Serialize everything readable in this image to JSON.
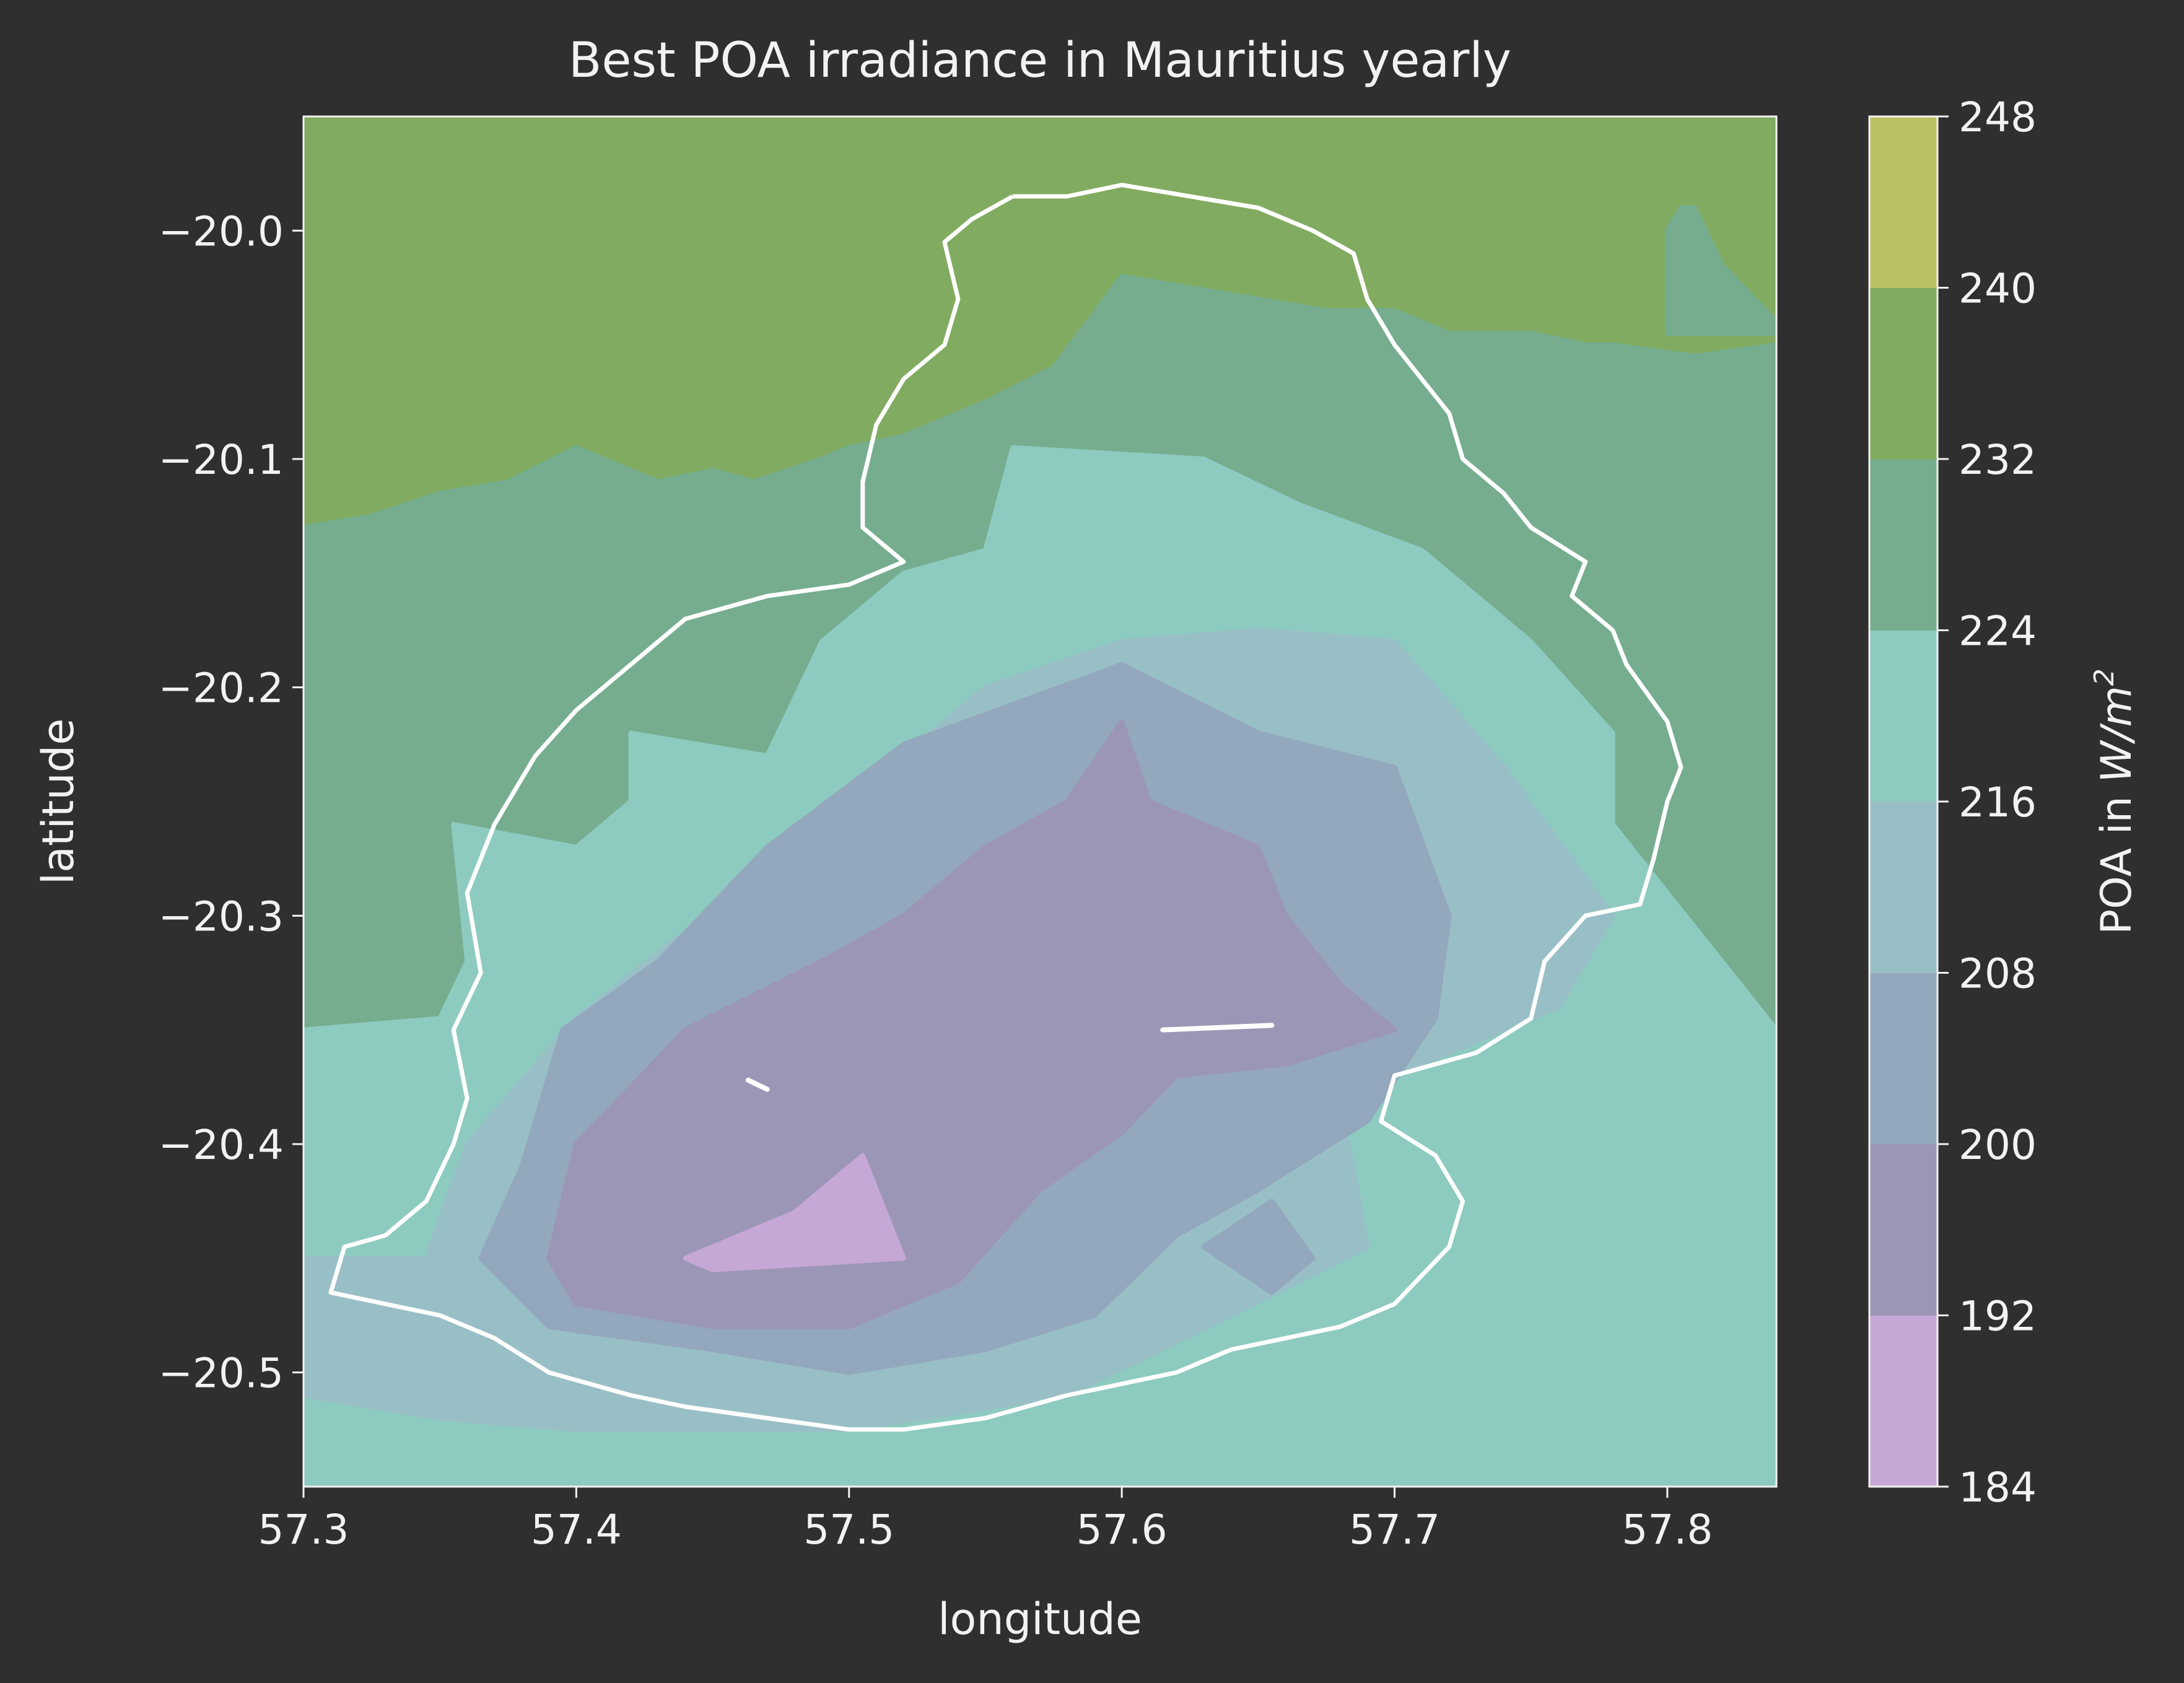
{
  "chart_data": {
    "type": "heatmap",
    "subtype": "filled-contour map with coastline overlay",
    "title": "Best POA irradiance in Mauritius yearly",
    "xlabel": "longitude",
    "ylabel": "latitude",
    "xlim": [
      57.3,
      57.84
    ],
    "ylim": [
      -20.55,
      -19.95
    ],
    "x_ticks": [
      "57.3",
      "57.4",
      "57.5",
      "57.6",
      "57.7",
      "57.8"
    ],
    "x_tick_values": [
      57.3,
      57.4,
      57.5,
      57.6,
      57.7,
      57.8
    ],
    "y_ticks": [
      "−20.0",
      "−20.1",
      "−20.2",
      "−20.3",
      "−20.4",
      "−20.5"
    ],
    "y_tick_values": [
      -20.0,
      -20.1,
      -20.2,
      -20.3,
      -20.4,
      -20.5
    ],
    "colorbar": {
      "label": "POA in W/m²",
      "label_main": "POA in ",
      "label_unit": "W/m",
      "label_sup": "2",
      "levels": [
        184,
        192,
        200,
        208,
        216,
        224,
        232,
        240,
        248
      ],
      "tick_labels": [
        "184",
        "192",
        "200",
        "208",
        "216",
        "224",
        "232",
        "240",
        "248"
      ],
      "colors": [
        "#c5a8d6",
        "#9c96b6",
        "#93a7bd",
        "#99bfc6",
        "#8dcac0",
        "#75ad8e",
        "#81ab60",
        "#bcc064"
      ]
    },
    "regions": [
      {
        "level_index": 6,
        "range": [
          232,
          240
        ],
        "points": [
          [
            57.3,
            -19.95
          ],
          [
            57.84,
            -19.95
          ],
          [
            57.84,
            -20.55
          ],
          [
            57.3,
            -20.55
          ]
        ]
      },
      {
        "level_index": 5,
        "range": [
          224,
          232
        ],
        "points": [
          [
            57.3,
            -20.13
          ],
          [
            57.325,
            -20.125
          ],
          [
            57.35,
            -20.115
          ],
          [
            57.375,
            -20.11
          ],
          [
            57.4,
            -20.095
          ],
          [
            57.41,
            -20.1
          ],
          [
            57.43,
            -20.11
          ],
          [
            57.45,
            -20.105
          ],
          [
            57.465,
            -20.11
          ],
          [
            57.49,
            -20.1
          ],
          [
            57.5,
            -20.095
          ],
          [
            57.52,
            -20.09
          ],
          [
            57.55,
            -20.075
          ],
          [
            57.575,
            -20.06
          ],
          [
            57.6,
            -20.02
          ],
          [
            57.625,
            -20.025
          ],
          [
            57.65,
            -20.03
          ],
          [
            57.675,
            -20.035
          ],
          [
            57.7,
            -20.035
          ],
          [
            57.72,
            -20.045
          ],
          [
            57.75,
            -20.045
          ],
          [
            57.77,
            -20.05
          ],
          [
            57.78,
            -20.05
          ],
          [
            57.81,
            -20.055
          ],
          [
            57.84,
            -20.05
          ],
          [
            57.84,
            -20.55
          ],
          [
            57.3,
            -20.55
          ]
        ]
      },
      {
        "level_index": 5,
        "range": [
          224,
          232
        ],
        "points": [
          [
            57.8,
            -20.0
          ],
          [
            57.805,
            -19.99
          ],
          [
            57.81,
            -19.99
          ],
          [
            57.82,
            -20.015
          ],
          [
            57.84,
            -20.04
          ],
          [
            57.84,
            -20.045
          ],
          [
            57.8,
            -20.045
          ]
        ]
      },
      {
        "level_index": 4,
        "range": [
          216,
          224
        ],
        "points": [
          [
            57.3,
            -20.35
          ],
          [
            57.35,
            -20.345
          ],
          [
            57.36,
            -20.32
          ],
          [
            57.355,
            -20.26
          ],
          [
            57.4,
            -20.27
          ],
          [
            57.42,
            -20.25
          ],
          [
            57.42,
            -20.22
          ],
          [
            57.47,
            -20.23
          ],
          [
            57.49,
            -20.18
          ],
          [
            57.52,
            -20.15
          ],
          [
            57.55,
            -20.14
          ],
          [
            57.56,
            -20.095
          ],
          [
            57.63,
            -20.1
          ],
          [
            57.665,
            -20.12
          ],
          [
            57.71,
            -20.14
          ],
          [
            57.75,
            -20.18
          ],
          [
            57.78,
            -20.22
          ],
          [
            57.78,
            -20.26
          ],
          [
            57.84,
            -20.35
          ],
          [
            57.84,
            -20.55
          ],
          [
            57.3,
            -20.55
          ]
        ]
      },
      {
        "level_index": 3,
        "range": [
          208,
          216
        ],
        "points": [
          [
            57.3,
            -20.45
          ],
          [
            57.345,
            -20.45
          ],
          [
            57.36,
            -20.4
          ],
          [
            57.4,
            -20.345
          ],
          [
            57.5,
            -20.25
          ],
          [
            57.55,
            -20.2
          ],
          [
            57.6,
            -20.18
          ],
          [
            57.65,
            -20.175
          ],
          [
            57.7,
            -20.18
          ],
          [
            57.74,
            -20.235
          ],
          [
            57.78,
            -20.3
          ],
          [
            57.76,
            -20.34
          ],
          [
            57.72,
            -20.36
          ],
          [
            57.68,
            -20.38
          ],
          [
            57.69,
            -20.445
          ],
          [
            57.64,
            -20.475
          ],
          [
            57.58,
            -20.51
          ],
          [
            57.5,
            -20.525
          ],
          [
            57.4,
            -20.525
          ],
          [
            57.35,
            -20.52
          ],
          [
            57.3,
            -20.51
          ]
        ]
      },
      {
        "level_index": 2,
        "range": [
          200,
          208
        ],
        "points": [
          [
            57.365,
            -20.45
          ],
          [
            57.38,
            -20.41
          ],
          [
            57.395,
            -20.35
          ],
          [
            57.43,
            -20.32
          ],
          [
            57.47,
            -20.27
          ],
          [
            57.52,
            -20.225
          ],
          [
            57.6,
            -20.19
          ],
          [
            57.65,
            -20.22
          ],
          [
            57.7,
            -20.235
          ],
          [
            57.72,
            -20.3
          ],
          [
            57.715,
            -20.345
          ],
          [
            57.69,
            -20.39
          ],
          [
            57.65,
            -20.42
          ],
          [
            57.62,
            -20.44
          ],
          [
            57.59,
            -20.475
          ],
          [
            57.55,
            -20.49
          ],
          [
            57.5,
            -20.5
          ],
          [
            57.45,
            -20.49
          ],
          [
            57.39,
            -20.48
          ]
        ]
      },
      {
        "level_index": 1,
        "range": [
          192,
          200
        ],
        "points": [
          [
            57.39,
            -20.45
          ],
          [
            57.4,
            -20.4
          ],
          [
            57.44,
            -20.35
          ],
          [
            57.49,
            -20.32
          ],
          [
            57.52,
            -20.3
          ],
          [
            57.55,
            -20.27
          ],
          [
            57.58,
            -20.25
          ],
          [
            57.6,
            -20.215
          ],
          [
            57.61,
            -20.25
          ],
          [
            57.65,
            -20.27
          ],
          [
            57.66,
            -20.3
          ],
          [
            57.68,
            -20.33
          ],
          [
            57.7,
            -20.35
          ],
          [
            57.66,
            -20.365
          ],
          [
            57.62,
            -20.37
          ],
          [
            57.6,
            -20.395
          ],
          [
            57.57,
            -20.42
          ],
          [
            57.54,
            -20.46
          ],
          [
            57.5,
            -20.48
          ],
          [
            57.45,
            -20.48
          ],
          [
            57.4,
            -20.47
          ]
        ]
      },
      {
        "level_index": 2,
        "range": [
          200,
          208
        ],
        "points": [
          [
            57.63,
            -20.445
          ],
          [
            57.655,
            -20.425
          ],
          [
            57.67,
            -20.45
          ],
          [
            57.655,
            -20.465
          ]
        ]
      },
      {
        "level_index": 0,
        "range": [
          184,
          192
        ],
        "points": [
          [
            57.44,
            -20.45
          ],
          [
            57.48,
            -20.43
          ],
          [
            57.505,
            -20.405
          ],
          [
            57.52,
            -20.45
          ],
          [
            57.45,
            -20.455
          ]
        ]
      }
    ],
    "coastline": [
      [
        57.56,
        -19.985
      ],
      [
        57.58,
        -19.985
      ],
      [
        57.6,
        -19.98
      ],
      [
        57.625,
        -19.985
      ],
      [
        57.65,
        -19.99
      ],
      [
        57.67,
        -20.0
      ],
      [
        57.685,
        -20.01
      ],
      [
        57.69,
        -20.03
      ],
      [
        57.7,
        -20.05
      ],
      [
        57.71,
        -20.065
      ],
      [
        57.72,
        -20.08
      ],
      [
        57.725,
        -20.1
      ],
      [
        57.74,
        -20.115
      ],
      [
        57.75,
        -20.13
      ],
      [
        57.77,
        -20.145
      ],
      [
        57.765,
        -20.16
      ],
      [
        57.78,
        -20.175
      ],
      [
        57.785,
        -20.19
      ],
      [
        57.8,
        -20.215
      ],
      [
        57.805,
        -20.235
      ],
      [
        57.8,
        -20.25
      ],
      [
        57.795,
        -20.275
      ],
      [
        57.79,
        -20.295
      ],
      [
        57.77,
        -20.3
      ],
      [
        57.755,
        -20.32
      ],
      [
        57.75,
        -20.345
      ],
      [
        57.73,
        -20.36
      ],
      [
        57.7,
        -20.37
      ],
      [
        57.695,
        -20.39
      ],
      [
        57.715,
        -20.405
      ],
      [
        57.725,
        -20.425
      ],
      [
        57.72,
        -20.445
      ],
      [
        57.7,
        -20.47
      ],
      [
        57.68,
        -20.48
      ],
      [
        57.66,
        -20.485
      ],
      [
        57.64,
        -20.49
      ],
      [
        57.62,
        -20.5
      ],
      [
        57.6,
        -20.505
      ],
      [
        57.58,
        -20.51
      ],
      [
        57.55,
        -20.52
      ],
      [
        57.52,
        -20.525
      ],
      [
        57.5,
        -20.525
      ],
      [
        57.47,
        -20.52
      ],
      [
        57.44,
        -20.515
      ],
      [
        57.42,
        -20.51
      ],
      [
        57.39,
        -20.5
      ],
      [
        57.37,
        -20.485
      ],
      [
        57.35,
        -20.475
      ],
      [
        57.33,
        -20.47
      ],
      [
        57.31,
        -20.465
      ],
      [
        57.315,
        -20.445
      ],
      [
        57.33,
        -20.44
      ],
      [
        57.345,
        -20.425
      ],
      [
        57.355,
        -20.4
      ],
      [
        57.36,
        -20.38
      ],
      [
        57.355,
        -20.35
      ],
      [
        57.365,
        -20.325
      ],
      [
        57.36,
        -20.29
      ],
      [
        57.37,
        -20.26
      ],
      [
        57.385,
        -20.23
      ],
      [
        57.4,
        -20.21
      ],
      [
        57.42,
        -20.19
      ],
      [
        57.44,
        -20.17
      ],
      [
        57.47,
        -20.16
      ],
      [
        57.5,
        -20.155
      ],
      [
        57.52,
        -20.145
      ],
      [
        57.505,
        -20.13
      ],
      [
        57.505,
        -20.11
      ],
      [
        57.51,
        -20.085
      ],
      [
        57.52,
        -20.065
      ],
      [
        57.535,
        -20.05
      ],
      [
        57.54,
        -20.03
      ],
      [
        57.535,
        -20.005
      ],
      [
        57.545,
        -19.995
      ],
      [
        57.56,
        -19.985
      ]
    ],
    "markers": [
      {
        "from": [
          57.463,
          -20.372
        ],
        "to": [
          57.47,
          -20.376
        ]
      },
      {
        "from": [
          57.615,
          -20.35
        ],
        "to": [
          57.655,
          -20.348
        ]
      }
    ]
  }
}
